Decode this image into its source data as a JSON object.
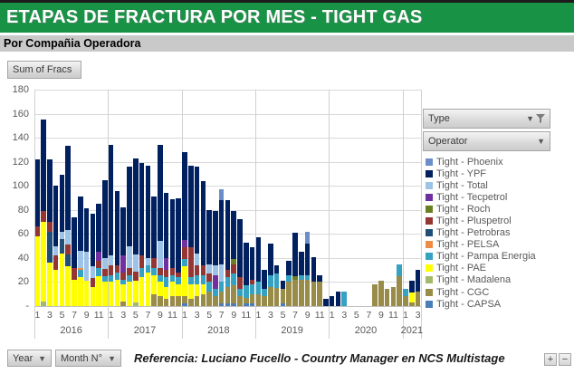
{
  "header": {
    "title": "ETAPAS DE FRACTURA POR MES - TIGHT GAS",
    "subtitle": "Por Compañia Operadora",
    "accent_green": "#189346"
  },
  "field_buttons": {
    "value_button": "Sum of Fracs",
    "type_button": "Type",
    "operator_button": "Operator",
    "year_button": "Year",
    "month_button": "Month N°"
  },
  "footer": {
    "reference": "Referencia: Luciano Fucello - Country Manager en NCS Multistage",
    "zoom_in": "+",
    "zoom_out": "−"
  },
  "chart_data": {
    "type": "bar",
    "stacked": true,
    "value_field": "Sum of Fracs",
    "ylim": [
      0,
      180
    ],
    "ytick_interval": 20,
    "zero_label": "-",
    "grid": true,
    "legend_position": "right",
    "month_ticks": [
      1,
      3,
      5,
      7,
      9,
      11
    ],
    "years": [
      {
        "label": "2016",
        "months": 12
      },
      {
        "label": "2017",
        "months": 12
      },
      {
        "label": "2018",
        "months": 12
      },
      {
        "label": "2019",
        "months": 12
      },
      {
        "label": "2020",
        "months": 12
      },
      {
        "label": "2021",
        "months": 3
      }
    ],
    "stack_order_bottom_to_top": [
      "Tight - CAPSA",
      "Tight - CGC",
      "Tight - Madalena",
      "Tight - PAE",
      "Tight - Pampa Energia",
      "Tight - PELSA",
      "Tight - Petrobras",
      "Tight - Pluspetrol",
      "Tight - Roch",
      "Tight - Tecpetrol",
      "Tight - Total",
      "Tight - YPF",
      "Tight - Phoenix"
    ],
    "series": [
      {
        "name": "Tight - Phoenix",
        "color": "#6B8EC9",
        "values": [
          0,
          0,
          0,
          0,
          0,
          0,
          0,
          0,
          0,
          0,
          0,
          0,
          0,
          0,
          0,
          0,
          0,
          0,
          0,
          0,
          0,
          0,
          0,
          0,
          0,
          0,
          0,
          0,
          0,
          0,
          9,
          0,
          0,
          0,
          0,
          0,
          0,
          0,
          0,
          0,
          0,
          0,
          0,
          0,
          10,
          0,
          0,
          0,
          0,
          0,
          0,
          0,
          0,
          0,
          0,
          0,
          0,
          0,
          0,
          0,
          0,
          0,
          0
        ]
      },
      {
        "name": "Tight - YPF",
        "color": "#002060",
        "values": [
          56,
          76,
          52,
          50,
          47,
          70,
          42,
          45,
          36,
          44,
          40,
          65,
          92,
          62,
          40,
          66,
          80,
          77,
          77,
          51,
          80,
          54,
          57,
          62,
          73,
          68,
          72,
          70,
          45,
          45,
          53,
          58,
          40,
          48,
          36,
          27,
          37,
          16,
          26,
          7,
          7,
          12,
          36,
          19,
          26,
          21,
          6,
          6,
          8,
          12,
          0,
          0,
          0,
          0,
          0,
          0,
          0,
          0,
          0,
          0,
          0,
          10,
          18
        ]
      },
      {
        "name": "Tight - Total",
        "color": "#9DC3E6",
        "values": [
          0,
          0,
          0,
          8,
          6,
          12,
          0,
          14,
          24,
          10,
          0,
          9,
          8,
          0,
          0,
          18,
          14,
          0,
          6,
          0,
          22,
          0,
          0,
          0,
          0,
          0,
          10,
          0,
          8,
          8,
          15,
          0,
          0,
          0,
          0,
          0,
          0,
          0,
          0,
          0,
          0,
          0,
          0,
          0,
          0,
          0,
          0,
          0,
          0,
          0,
          0,
          0,
          0,
          0,
          0,
          0,
          0,
          0,
          0,
          0,
          0,
          0,
          0
        ]
      },
      {
        "name": "Tight - Tecpetrol",
        "color": "#7030A0",
        "values": [
          0,
          0,
          0,
          0,
          0,
          0,
          0,
          0,
          0,
          0,
          7,
          0,
          0,
          0,
          14,
          0,
          0,
          0,
          0,
          0,
          0,
          10,
          0,
          0,
          6,
          0,
          0,
          0,
          0,
          12,
          0,
          0,
          0,
          0,
          0,
          0,
          0,
          0,
          0,
          0,
          0,
          0,
          0,
          0,
          0,
          0,
          0,
          0,
          0,
          0,
          0,
          0,
          0,
          0,
          0,
          0,
          0,
          0,
          0,
          0,
          0,
          0,
          0
        ]
      },
      {
        "name": "Tight - Roch",
        "color": "#6A7E22",
        "values": [
          0,
          0,
          0,
          0,
          0,
          0,
          0,
          0,
          0,
          0,
          0,
          0,
          0,
          0,
          0,
          0,
          0,
          0,
          0,
          0,
          0,
          0,
          0,
          0,
          0,
          0,
          0,
          0,
          0,
          0,
          0,
          0,
          4,
          0,
          0,
          0,
          0,
          0,
          0,
          0,
          0,
          0,
          3,
          0,
          0,
          0,
          0,
          0,
          0,
          0,
          0,
          0,
          0,
          0,
          0,
          0,
          0,
          0,
          0,
          0,
          0,
          0,
          0
        ]
      },
      {
        "name": "Tight - Pluspetrol",
        "color": "#943634",
        "values": [
          8,
          9,
          8,
          12,
          0,
          8,
          10,
          0,
          0,
          7,
          6,
          6,
          8,
          6,
          6,
          6,
          8,
          10,
          0,
          8,
          6,
          6,
          6,
          4,
          10,
          25,
          8,
          8,
          7,
          0,
          0,
          6,
          8,
          10,
          0,
          4,
          0,
          0,
          0,
          0,
          0,
          0,
          0,
          0,
          0,
          0,
          0,
          0,
          0,
          0,
          0,
          0,
          0,
          0,
          0,
          0,
          0,
          0,
          0,
          0,
          0,
          0,
          0
        ]
      },
      {
        "name": "Tight - Petrobras",
        "color": "#1F4E79",
        "values": [
          0,
          0,
          26,
          0,
          12,
          10,
          0,
          0,
          0,
          0,
          0,
          0,
          0,
          0,
          0,
          0,
          0,
          0,
          0,
          0,
          0,
          0,
          0,
          0,
          0,
          0,
          0,
          0,
          0,
          0,
          0,
          0,
          0,
          0,
          0,
          0,
          0,
          0,
          0,
          0,
          0,
          0,
          0,
          0,
          0,
          0,
          0,
          0,
          0,
          0,
          0,
          0,
          0,
          0,
          0,
          0,
          0,
          0,
          0,
          0,
          0,
          0,
          0
        ]
      },
      {
        "name": "Tight - PELSA",
        "color": "#ED8C46",
        "values": [
          0,
          0,
          0,
          0,
          0,
          0,
          0,
          2,
          0,
          0,
          0,
          0,
          0,
          0,
          0,
          0,
          0,
          0,
          0,
          0,
          0,
          0,
          0,
          0,
          0,
          0,
          0,
          0,
          0,
          0,
          0,
          0,
          0,
          0,
          0,
          0,
          0,
          0,
          0,
          0,
          0,
          0,
          0,
          0,
          0,
          0,
          0,
          0,
          0,
          0,
          0,
          0,
          0,
          0,
          0,
          0,
          0,
          0,
          0,
          0,
          0,
          0,
          0
        ]
      },
      {
        "name": "Tight - Pampa Energia",
        "color": "#35A2C2",
        "values": [
          0,
          0,
          0,
          0,
          0,
          0,
          0,
          6,
          0,
          0,
          7,
          5,
          6,
          6,
          4,
          6,
          0,
          8,
          6,
          6,
          6,
          8,
          6,
          6,
          6,
          6,
          8,
          8,
          8,
          6,
          8,
          8,
          10,
          6,
          10,
          8,
          10,
          6,
          10,
          12,
          0,
          6,
          0,
          4,
          4,
          0,
          0,
          0,
          0,
          0,
          12,
          0,
          0,
          0,
          0,
          0,
          0,
          0,
          0,
          10,
          6,
          0,
          0
        ]
      },
      {
        "name": "Tight - PAE",
        "color": "#FFFF00",
        "values": [
          58,
          66,
          36,
          30,
          44,
          33,
          22,
          24,
          21,
          16,
          25,
          20,
          20,
          22,
          14,
          20,
          18,
          24,
          28,
          16,
          12,
          10,
          12,
          10,
          25,
          12,
          10,
          8,
          0,
          0,
          0,
          0,
          0,
          0,
          0,
          0,
          0,
          0,
          0,
          0,
          0,
          0,
          0,
          0,
          0,
          0,
          0,
          0,
          0,
          0,
          0,
          0,
          0,
          0,
          0,
          0,
          0,
          0,
          0,
          0,
          0,
          8,
          0
        ]
      },
      {
        "name": "Tight - Madalena",
        "color": "#A3B96C",
        "values": [
          0,
          4,
          0,
          0,
          0,
          0,
          0,
          0,
          0,
          0,
          0,
          0,
          0,
          0,
          0,
          0,
          3,
          0,
          0,
          0,
          0,
          0,
          0,
          0,
          0,
          0,
          0,
          0,
          0,
          0,
          0,
          0,
          0,
          0,
          0,
          0,
          0,
          0,
          0,
          0,
          0,
          0,
          0,
          0,
          0,
          0,
          0,
          0,
          0,
          0,
          0,
          0,
          0,
          0,
          0,
          0,
          0,
          0,
          0,
          0,
          0,
          0,
          0
        ]
      },
      {
        "name": "Tight - CGC",
        "color": "#998B48",
        "values": [
          0,
          0,
          0,
          0,
          0,
          0,
          0,
          0,
          0,
          0,
          0,
          0,
          0,
          0,
          4,
          0,
          0,
          0,
          0,
          10,
          8,
          6,
          8,
          8,
          6,
          6,
          8,
          10,
          12,
          8,
          10,
          14,
          15,
          8,
          5,
          8,
          10,
          8,
          16,
          15,
          12,
          20,
          22,
          22,
          22,
          20,
          20,
          0,
          0,
          0,
          0,
          0,
          0,
          0,
          0,
          18,
          21,
          14,
          16,
          25,
          8,
          3,
          12
        ]
      },
      {
        "name": "Tight - CAPSA",
        "color": "#4A7EBB",
        "values": [
          0,
          0,
          0,
          0,
          0,
          0,
          0,
          0,
          0,
          0,
          0,
          0,
          0,
          0,
          0,
          0,
          0,
          0,
          0,
          0,
          0,
          0,
          0,
          0,
          2,
          0,
          0,
          0,
          0,
          0,
          2,
          2,
          2,
          0,
          2,
          2,
          0,
          0,
          0,
          0,
          2,
          0,
          0,
          0,
          0,
          0,
          0,
          0,
          0,
          0,
          0,
          0,
          0,
          0,
          0,
          0,
          0,
          0,
          0,
          0,
          0,
          0,
          0
        ]
      }
    ]
  }
}
